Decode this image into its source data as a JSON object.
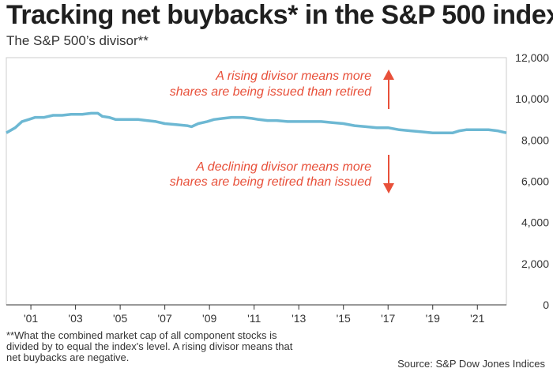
{
  "title": "Tracking net buybacks* in the S&P 500 index",
  "subtitle": "The S&P 500’s divisor**",
  "footnote": "**What the combined market cap of all component stocks is divided by to equal the index's level. A rising divisor means that net buybacks are negative.",
  "source": "Source: S&P Dow Jones Indices",
  "colors": {
    "line": "#6db8d3",
    "annotation": "#e8503a",
    "axis": "#333333",
    "frame": "#cccccc"
  },
  "chart_data": {
    "type": "line",
    "title": "Tracking net buybacks* in the S&P 500 index",
    "subtitle": "The S&P 500’s divisor**",
    "xlim": [
      1999.9,
      2022.3
    ],
    "ylim": [
      0,
      12000
    ],
    "grid": false,
    "y_ticks": [
      0,
      2000,
      4000,
      6000,
      8000,
      10000,
      12000
    ],
    "y_tick_labels": [
      "0",
      "2,000",
      "4,000",
      "6,000",
      "8,000",
      "10,000",
      "12,000"
    ],
    "x_ticks": [
      2001,
      2003,
      2005,
      2007,
      2009,
      2011,
      2013,
      2015,
      2017,
      2019,
      2021
    ],
    "x_tick_labels": [
      "'01",
      "'03",
      "'05",
      "'07",
      "'09",
      "'11",
      "'13",
      "'15",
      "'17",
      "'19",
      "'21"
    ],
    "series": [
      {
        "x": [
          1999.9,
          2000.3,
          2000.6,
          2000.9,
          2001.2,
          2001.6,
          2002.0,
          2002.4,
          2002.8,
          2003.3,
          2003.7,
          2004.0,
          2004.2,
          2004.5,
          2004.8,
          2005.3,
          2005.8,
          2006.2,
          2006.6,
          2007.0,
          2007.5,
          2008.0,
          2008.2,
          2008.5,
          2008.9,
          2009.2,
          2009.6,
          2010.0,
          2010.5,
          2010.9,
          2011.2,
          2011.6,
          2012.0,
          2012.5,
          2013.0,
          2013.5,
          2014.0,
          2014.5,
          2015.0,
          2015.5,
          2016.0,
          2016.5,
          2017.0,
          2017.5,
          2018.0,
          2018.5,
          2019.0,
          2019.5,
          2019.9,
          2020.2,
          2020.5,
          2021.0,
          2021.5,
          2021.9,
          2022.3
        ],
        "y": [
          8350,
          8600,
          8900,
          9000,
          9100,
          9100,
          9200,
          9200,
          9250,
          9250,
          9300,
          9300,
          9150,
          9100,
          9000,
          9000,
          9000,
          8950,
          8900,
          8800,
          8750,
          8700,
          8650,
          8800,
          8900,
          9000,
          9050,
          9100,
          9100,
          9050,
          9000,
          8950,
          8950,
          8900,
          8900,
          8900,
          8900,
          8850,
          8800,
          8700,
          8650,
          8600,
          8600,
          8500,
          8450,
          8400,
          8350,
          8350,
          8350,
          8450,
          8500,
          8500,
          8500,
          8450,
          8350
        ]
      }
    ],
    "annotations": [
      {
        "text": [
          "A rising divisor means more",
          "shares are being issued than retired"
        ],
        "arrow": "up"
      },
      {
        "text": [
          "A declining divisor means more",
          "shares are being retired than issued"
        ],
        "arrow": "down"
      }
    ]
  }
}
